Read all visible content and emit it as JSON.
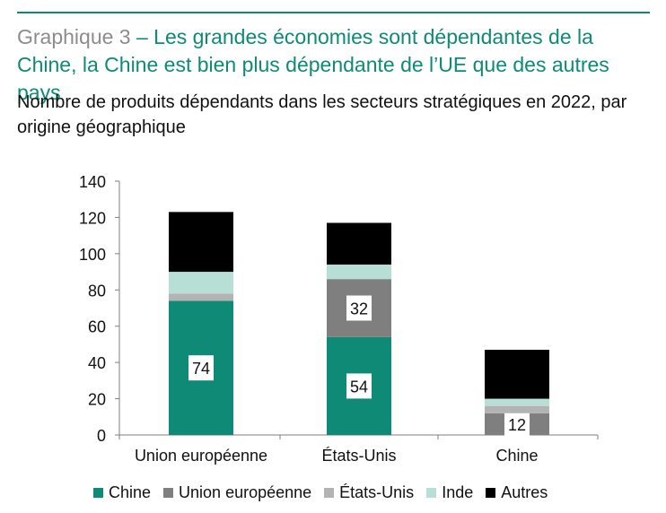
{
  "header": {
    "title_prefix": "Graphique 3",
    "title_main": " – Les grandes économies sont dépendantes de la Chine, la Chine est bien plus dépendante de l’UE que des autres pays",
    "subtitle": "Nombre de produits dépendants dans les secteurs stratégiques en 2022, par origine géographique"
  },
  "chart_data": {
    "type": "bar",
    "stacked": true,
    "categories": [
      "Union européenne",
      "États-Unis",
      "Chine"
    ],
    "series": [
      {
        "name": "Chine",
        "color": "#0e8a76",
        "values": [
          74,
          54,
          0
        ],
        "labels": [
          "74",
          "54",
          ""
        ]
      },
      {
        "name": "Union européenne",
        "color": "#7f7f7f",
        "values": [
          0,
          32,
          12
        ],
        "labels": [
          "",
          "32",
          "12"
        ]
      },
      {
        "name": "États-Unis",
        "color": "#b3b3b3",
        "values": [
          4,
          0,
          4
        ],
        "labels": [
          "",
          "",
          ""
        ]
      },
      {
        "name": "Inde",
        "color": "#b7dfd6",
        "values": [
          12,
          8,
          4
        ],
        "labels": [
          "",
          "",
          ""
        ]
      },
      {
        "name": "Autres",
        "color": "#000000",
        "values": [
          33,
          23,
          27
        ],
        "labels": [
          "",
          "",
          ""
        ]
      }
    ],
    "ylim": [
      0,
      140
    ],
    "yticks": [
      0,
      20,
      40,
      60,
      80,
      100,
      120,
      140
    ],
    "grid": false,
    "legend_position": "bottom"
  }
}
